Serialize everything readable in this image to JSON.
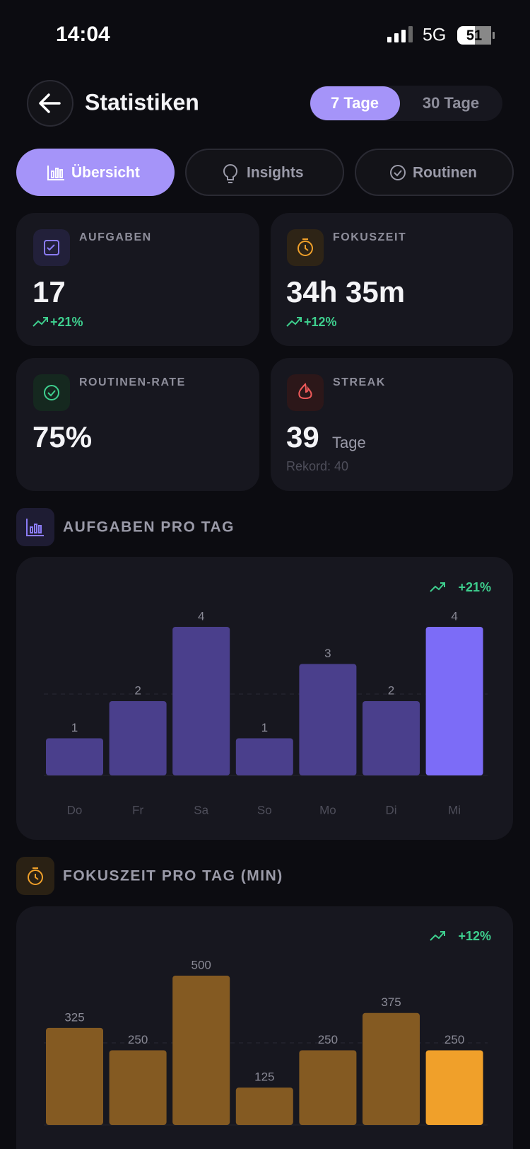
{
  "status_bar": {
    "time": "14:04",
    "network": "5G",
    "battery": "51"
  },
  "header": {
    "title": "Statistiken",
    "ranges": [
      "7 Tage",
      "30 Tage"
    ]
  },
  "tabs": [
    "Übersicht",
    "Insights",
    "Routinen"
  ],
  "cards": [
    {
      "label": "AUFGABEN",
      "value": "17",
      "trend": "+21%"
    },
    {
      "label": "FOKUSZEIT",
      "value": "34h 35m",
      "trend": "+12%"
    },
    {
      "label": "ROUTINEN-RATE",
      "value": "75%"
    },
    {
      "label": "STREAK",
      "value": "39",
      "unit": "Tage",
      "note": "Rekord: 40"
    }
  ],
  "charts": [
    {
      "type": "bar",
      "title": "AUFGABEN PRO TAG",
      "trend": "+21%",
      "categories": [
        "Do",
        "Fr",
        "Sa",
        "So",
        "Mo",
        "Di",
        "Mi"
      ],
      "values": [
        1,
        2,
        4,
        1,
        3,
        2,
        4
      ],
      "colors": [
        "#4a3f8c",
        "#4a3f8c",
        "#4a3f8c",
        "#4a3f8c",
        "#4a3f8c",
        "#4a3f8c",
        "#7c6cf7"
      ],
      "ylim": [
        0,
        4
      ]
    },
    {
      "type": "bar",
      "title": "FOKUSZEIT PRO TAG (MIN)",
      "trend": "+12%",
      "values": [
        325,
        250,
        500,
        125,
        250,
        375,
        250
      ],
      "colors": [
        "#845a22",
        "#845a22",
        "#845a22",
        "#845a22",
        "#845a22",
        "#845a22",
        "#f0a02a"
      ],
      "ylim": [
        0,
        500
      ]
    }
  ]
}
